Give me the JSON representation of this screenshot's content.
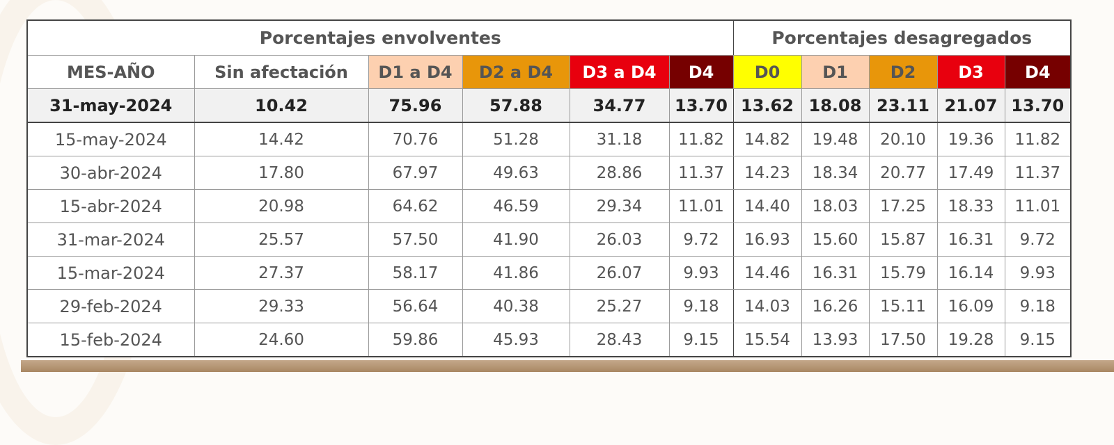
{
  "group_headers": {
    "envolventes": "Porcentajes envolventes",
    "desagregados": "Porcentajes desagregados"
  },
  "columns": [
    {
      "label": "MES-AÑO",
      "bg": "#ffffff",
      "fg": "#555555"
    },
    {
      "label": "Sin afectación",
      "bg": "#ffffff",
      "fg": "#555555"
    },
    {
      "label": "D1 a D4",
      "bg": "#fdd0b0",
      "fg": "#555555"
    },
    {
      "label": "D2 a D4",
      "bg": "#e8960a",
      "fg": "#555555"
    },
    {
      "label": "D3 a D4",
      "bg": "#e8000e",
      "fg": "#ffffff"
    },
    {
      "label": "D4",
      "bg": "#760000",
      "fg": "#ffffff"
    },
    {
      "label": "D0",
      "bg": "#ffff00",
      "fg": "#555555"
    },
    {
      "label": "D1",
      "bg": "#fdd0b0",
      "fg": "#555555"
    },
    {
      "label": "D2",
      "bg": "#e8960a",
      "fg": "#555555"
    },
    {
      "label": "D3",
      "bg": "#e8000e",
      "fg": "#ffffff"
    },
    {
      "label": "D4",
      "bg": "#760000",
      "fg": "#ffffff"
    }
  ],
  "rows": [
    [
      "31-may-2024",
      "10.42",
      "75.96",
      "57.88",
      "34.77",
      "13.70",
      "13.62",
      "18.08",
      "23.11",
      "21.07",
      "13.70"
    ],
    [
      "15-may-2024",
      "14.42",
      "70.76",
      "51.28",
      "31.18",
      "11.82",
      "14.82",
      "19.48",
      "20.10",
      "19.36",
      "11.82"
    ],
    [
      "30-abr-2024",
      "17.80",
      "67.97",
      "49.63",
      "28.86",
      "11.37",
      "14.23",
      "18.34",
      "20.77",
      "17.49",
      "11.37"
    ],
    [
      "15-abr-2024",
      "20.98",
      "64.62",
      "46.59",
      "29.34",
      "11.01",
      "14.40",
      "18.03",
      "17.25",
      "18.33",
      "11.01"
    ],
    [
      "31-mar-2024",
      "25.57",
      "57.50",
      "41.90",
      "26.03",
      "9.72",
      "16.93",
      "15.60",
      "15.87",
      "16.31",
      "9.72"
    ],
    [
      "15-mar-2024",
      "27.37",
      "58.17",
      "41.86",
      "26.07",
      "9.93",
      "14.46",
      "16.31",
      "15.79",
      "16.14",
      "9.93"
    ],
    [
      "29-feb-2024",
      "29.33",
      "56.64",
      "40.38",
      "25.27",
      "9.18",
      "14.03",
      "16.26",
      "15.11",
      "16.09",
      "9.18"
    ],
    [
      "15-feb-2024",
      "24.60",
      "59.86",
      "45.93",
      "28.43",
      "9.15",
      "15.54",
      "13.93",
      "17.50",
      "19.28",
      "9.15"
    ]
  ]
}
